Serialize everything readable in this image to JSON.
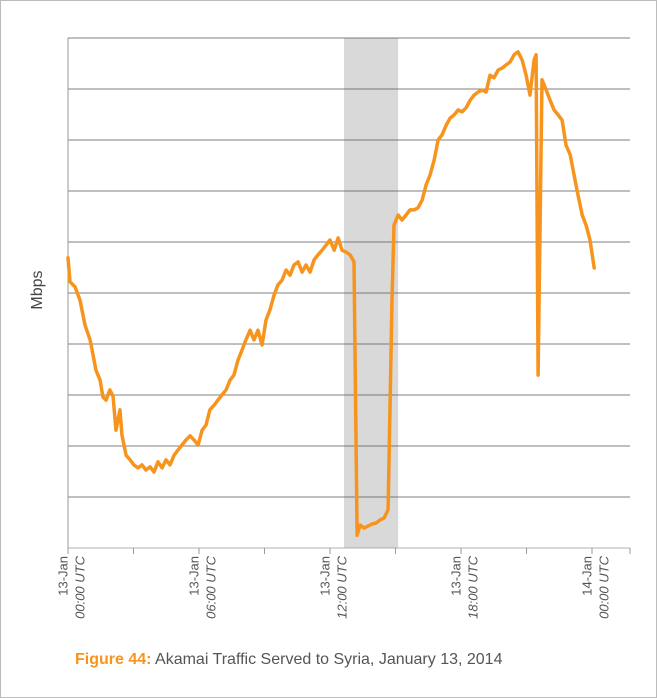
{
  "chart_data": {
    "type": "line",
    "figure_label": "Figure 44:",
    "title": "Akamai Traffic Served to Syria, January 13, 2014",
    "ylabel": "Mbps",
    "color": "#f7941d",
    "shade_color": "#d9d9d9",
    "grid": true,
    "xlim": [
      0,
      25.74
    ],
    "ylim": [
      0,
      10
    ],
    "yticks": [
      0,
      1,
      2,
      3,
      4,
      5,
      6,
      7,
      8,
      9,
      10
    ],
    "xticks": [
      {
        "value": 0,
        "label": "13-Jan",
        "time": "00:00 UTC"
      },
      {
        "value": 6,
        "label": "13-Jan",
        "time": "06:00 UTC"
      },
      {
        "value": 12,
        "label": "13-Jan",
        "time": "12:00 UTC"
      },
      {
        "value": 18,
        "label": "13-Jan",
        "time": "18:00 UTC"
      },
      {
        "value": 24,
        "label": "14-Jan",
        "time": "00:00 UTC"
      }
    ],
    "xminor": [
      3,
      9,
      15,
      21,
      25.74
    ],
    "shaded_range": [
      12.64,
      15.12
    ],
    "x": [
      0,
      0.09,
      0.32,
      0.55,
      0.78,
      1.01,
      1.15,
      1.28,
      1.47,
      1.6,
      1.74,
      1.92,
      2.06,
      2.2,
      2.38,
      2.47,
      2.66,
      2.84,
      3.02,
      3.21,
      3.39,
      3.57,
      3.76,
      3.94,
      4.12,
      4.31,
      4.49,
      4.67,
      4.86,
      5.04,
      5.22,
      5.41,
      5.59,
      5.77,
      5.96,
      6.14,
      6.32,
      6.5,
      6.69,
      6.87,
      7.05,
      7.24,
      7.42,
      7.6,
      7.79,
      7.97,
      8.15,
      8.34,
      8.52,
      8.7,
      8.89,
      9.07,
      9.25,
      9.44,
      9.62,
      9.8,
      9.99,
      10.17,
      10.35,
      10.54,
      10.72,
      10.9,
      11.09,
      11.27,
      11.45,
      11.64,
      11.82,
      12,
      12.19,
      12.37,
      12.55,
      12.74,
      12.92,
      13.1,
      13.24,
      13.38,
      13.56,
      13.74,
      13.93,
      14.11,
      14.29,
      14.48,
      14.66,
      14.84,
      14.93,
      15.12,
      15.3,
      15.48,
      15.67,
      15.85,
      16.03,
      16.22,
      16.4,
      16.58,
      16.77,
      16.95,
      17.13,
      17.32,
      17.5,
      17.68,
      17.87,
      18.05,
      18.23,
      18.42,
      18.6,
      18.78,
      18.97,
      19.15,
      19.33,
      19.51,
      19.7,
      19.88,
      20.06,
      20.25,
      20.43,
      20.61,
      20.8,
      20.98,
      21.16,
      21.35,
      21.44,
      21.53,
      21.71,
      21.9,
      22.08,
      22.26,
      22.45,
      22.63,
      22.81,
      23,
      23.18,
      23.36,
      23.55,
      23.73,
      23.91,
      24.1
    ],
    "values": [
      5.69,
      5.22,
      5.12,
      4.86,
      4.37,
      4.08,
      3.78,
      3.49,
      3.29,
      2.96,
      2.9,
      3.1,
      2.98,
      2.31,
      2.71,
      2.22,
      1.82,
      1.73,
      1.63,
      1.57,
      1.63,
      1.53,
      1.59,
      1.49,
      1.69,
      1.57,
      1.73,
      1.63,
      1.82,
      1.92,
      2.02,
      2.12,
      2.2,
      2.12,
      2.02,
      2.31,
      2.41,
      2.71,
      2.8,
      2.9,
      3,
      3.1,
      3.29,
      3.39,
      3.69,
      3.88,
      4.08,
      4.27,
      4.08,
      4.27,
      3.98,
      4.47,
      4.67,
      4.96,
      5.16,
      5.25,
      5.45,
      5.35,
      5.55,
      5.61,
      5.41,
      5.55,
      5.41,
      5.65,
      5.75,
      5.84,
      5.94,
      6.04,
      5.84,
      6.08,
      5.84,
      5.8,
      5.75,
      5.61,
      0.25,
      0.45,
      0.39,
      0.43,
      0.47,
      0.49,
      0.55,
      0.59,
      0.75,
      4.86,
      6.33,
      6.53,
      6.43,
      6.53,
      6.63,
      6.63,
      6.67,
      6.82,
      7.12,
      7.31,
      7.61,
      8,
      8.1,
      8.29,
      8.43,
      8.49,
      8.59,
      8.55,
      8.63,
      8.78,
      8.88,
      8.94,
      8.98,
      8.94,
      9.27,
      9.22,
      9.37,
      9.41,
      9.47,
      9.53,
      9.67,
      9.73,
      9.57,
      9.27,
      8.88,
      9.57,
      9.67,
      3.39,
      9.18,
      8.98,
      8.78,
      8.59,
      8.49,
      8.39,
      7.9,
      7.71,
      7.31,
      6.92,
      6.53,
      6.33,
      6.04,
      5.49
    ]
  }
}
